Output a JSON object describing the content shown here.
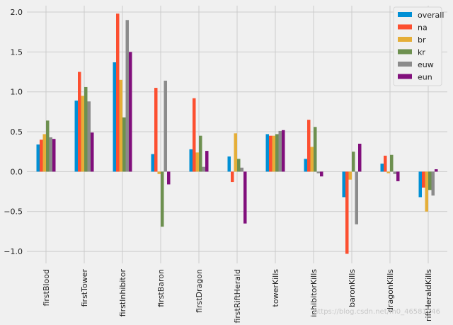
{
  "chart_data": {
    "type": "bar",
    "categories": [
      "firstBlood",
      "firstTower",
      "firstInhibitor",
      "firstBaron",
      "firstDragon",
      "firstRiftHerald",
      "towerKills",
      "inhibitorKills",
      "baronKills",
      "dragonKills",
      "riftHeraldKills"
    ],
    "series": [
      {
        "name": "overall",
        "color": "#008fd5",
        "values": [
          0.34,
          0.89,
          1.37,
          0.22,
          0.28,
          0.19,
          0.47,
          0.16,
          -0.32,
          0.1,
          -0.32
        ]
      },
      {
        "name": "na",
        "color": "#fc4f30",
        "values": [
          0.4,
          1.25,
          1.98,
          1.05,
          0.92,
          -0.13,
          0.45,
          0.65,
          -1.03,
          0.2,
          -0.2
        ]
      },
      {
        "name": "br",
        "color": "#e5ae38",
        "values": [
          0.47,
          0.95,
          1.15,
          -0.03,
          0.24,
          0.48,
          0.45,
          0.31,
          -0.1,
          -0.02,
          -0.5
        ]
      },
      {
        "name": "kr",
        "color": "#6d904f",
        "values": [
          0.64,
          1.06,
          0.68,
          -0.69,
          0.45,
          0.16,
          0.47,
          0.56,
          0.25,
          0.21,
          -0.23
        ]
      },
      {
        "name": "euw",
        "color": "#8b8b8b",
        "values": [
          0.43,
          0.88,
          1.9,
          1.14,
          0.06,
          0.05,
          0.51,
          -0.02,
          -0.66,
          -0.03,
          -0.3
        ]
      },
      {
        "name": "eun",
        "color": "#810f7c",
        "values": [
          0.41,
          0.49,
          1.5,
          -0.16,
          0.26,
          -0.65,
          0.52,
          -0.06,
          0.35,
          -0.12,
          0.03
        ]
      }
    ],
    "title": "",
    "xlabel": "",
    "ylabel": "",
    "ylim": [
      -1.15,
      2.08
    ],
    "yticks": [
      -1.0,
      -0.5,
      0.0,
      0.5,
      1.0,
      1.5,
      2.0
    ],
    "ytick_labels": [
      "−1.0",
      "−0.5",
      "0.0",
      "0.5",
      "1.0",
      "1.5",
      "2.0"
    ],
    "grid": true,
    "legend_position": "top-right"
  },
  "watermark": "https://blog.csdn.net/m0_46581246"
}
